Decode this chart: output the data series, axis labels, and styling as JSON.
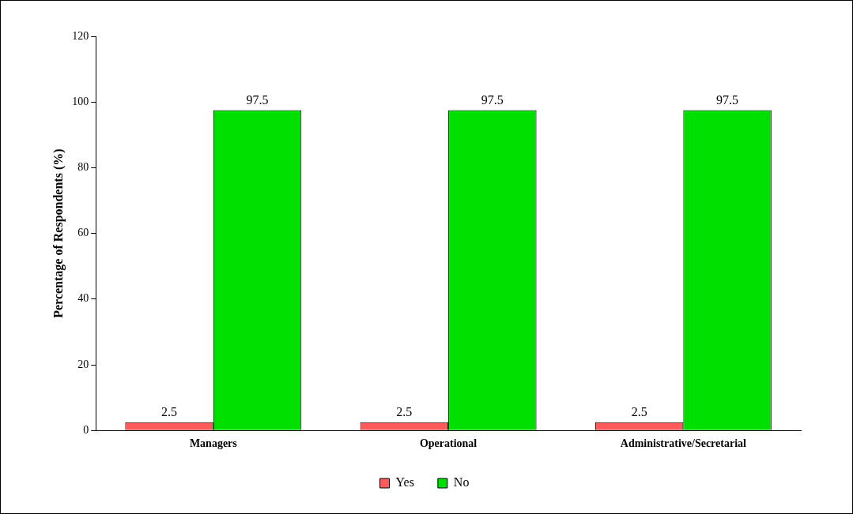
{
  "chart_data": {
    "type": "bar",
    "ylabel": "Percentage of Respondents (%)",
    "categories": [
      "Managers",
      "Operational",
      "Administrative/Secretarial"
    ],
    "series": [
      {
        "name": "Yes",
        "color": "#ff5a5a",
        "values": [
          2.5,
          2.5,
          2.5
        ]
      },
      {
        "name": "No",
        "color": "#00e000",
        "values": [
          97.5,
          97.5,
          97.5
        ]
      }
    ],
    "ylim": [
      0,
      120
    ],
    "yticks": [
      0,
      20,
      40,
      60,
      80,
      100,
      120
    ],
    "grid": false,
    "legend": "bottom",
    "data_labels": true
  }
}
